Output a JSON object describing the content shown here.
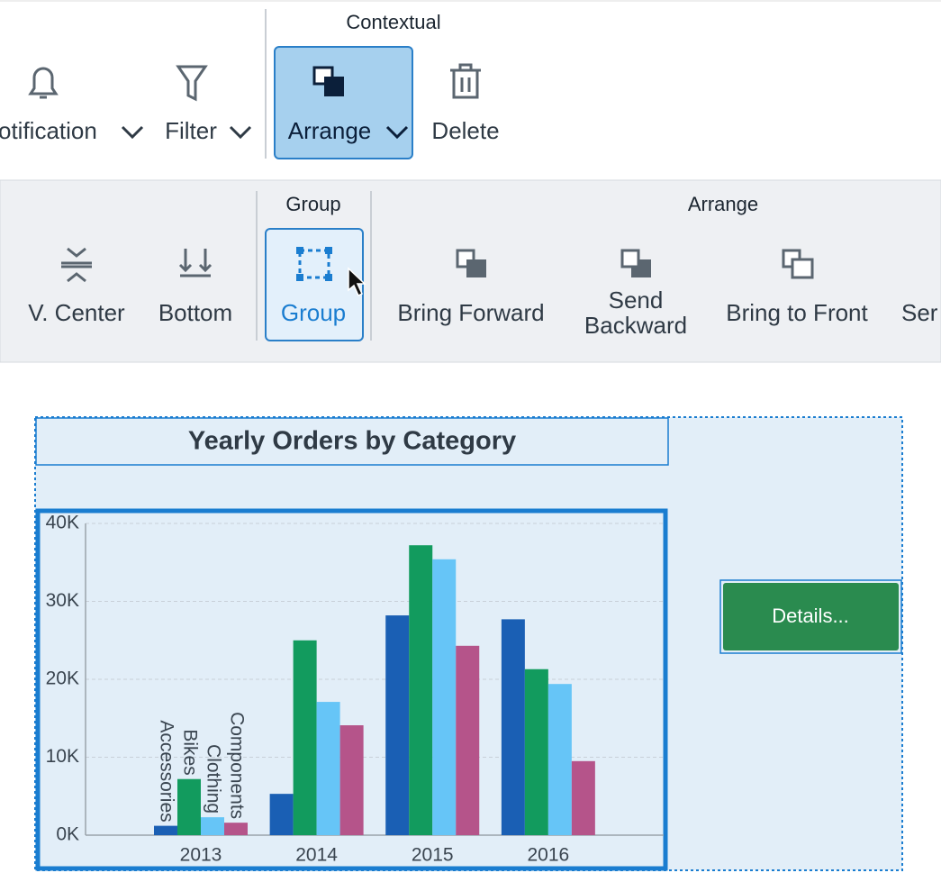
{
  "toolbar": {
    "section_label": "Contextual",
    "items": [
      "otification",
      "Filter",
      "Arrange",
      "Delete"
    ]
  },
  "ribbon": {
    "group_header": "Group",
    "arrange_header": "Arrange",
    "items": [
      "V. Center",
      "Bottom",
      "Group",
      "Bring Forward",
      "Send Backward",
      "Bring to Front",
      "Ser"
    ]
  },
  "chart_data": {
    "type": "bar",
    "title": "Yearly Orders by Category",
    "categories": [
      "2013",
      "2014",
      "2015",
      "2016"
    ],
    "series": [
      {
        "name": "Accessories",
        "color": "#1a5fb4",
        "values": [
          1200,
          5300,
          28200,
          27700
        ]
      },
      {
        "name": "Bikes",
        "color": "#129b5e",
        "values": [
          7200,
          25000,
          37200,
          21300
        ]
      },
      {
        "name": "Clothing",
        "color": "#66c5f7",
        "values": [
          2300,
          17100,
          35400,
          19400
        ]
      },
      {
        "name": "Components",
        "color": "#b5548a",
        "values": [
          1600,
          14100,
          24300,
          9500
        ]
      }
    ],
    "ylim": [
      0,
      40000
    ],
    "yticks": [
      {
        "value": 0,
        "label": "0K"
      },
      {
        "value": 10000,
        "label": "10K"
      },
      {
        "value": 20000,
        "label": "20K"
      },
      {
        "value": 30000,
        "label": "30K"
      },
      {
        "value": 40000,
        "label": "40K"
      }
    ],
    "grid": true
  },
  "button": {
    "label": "Details..."
  }
}
